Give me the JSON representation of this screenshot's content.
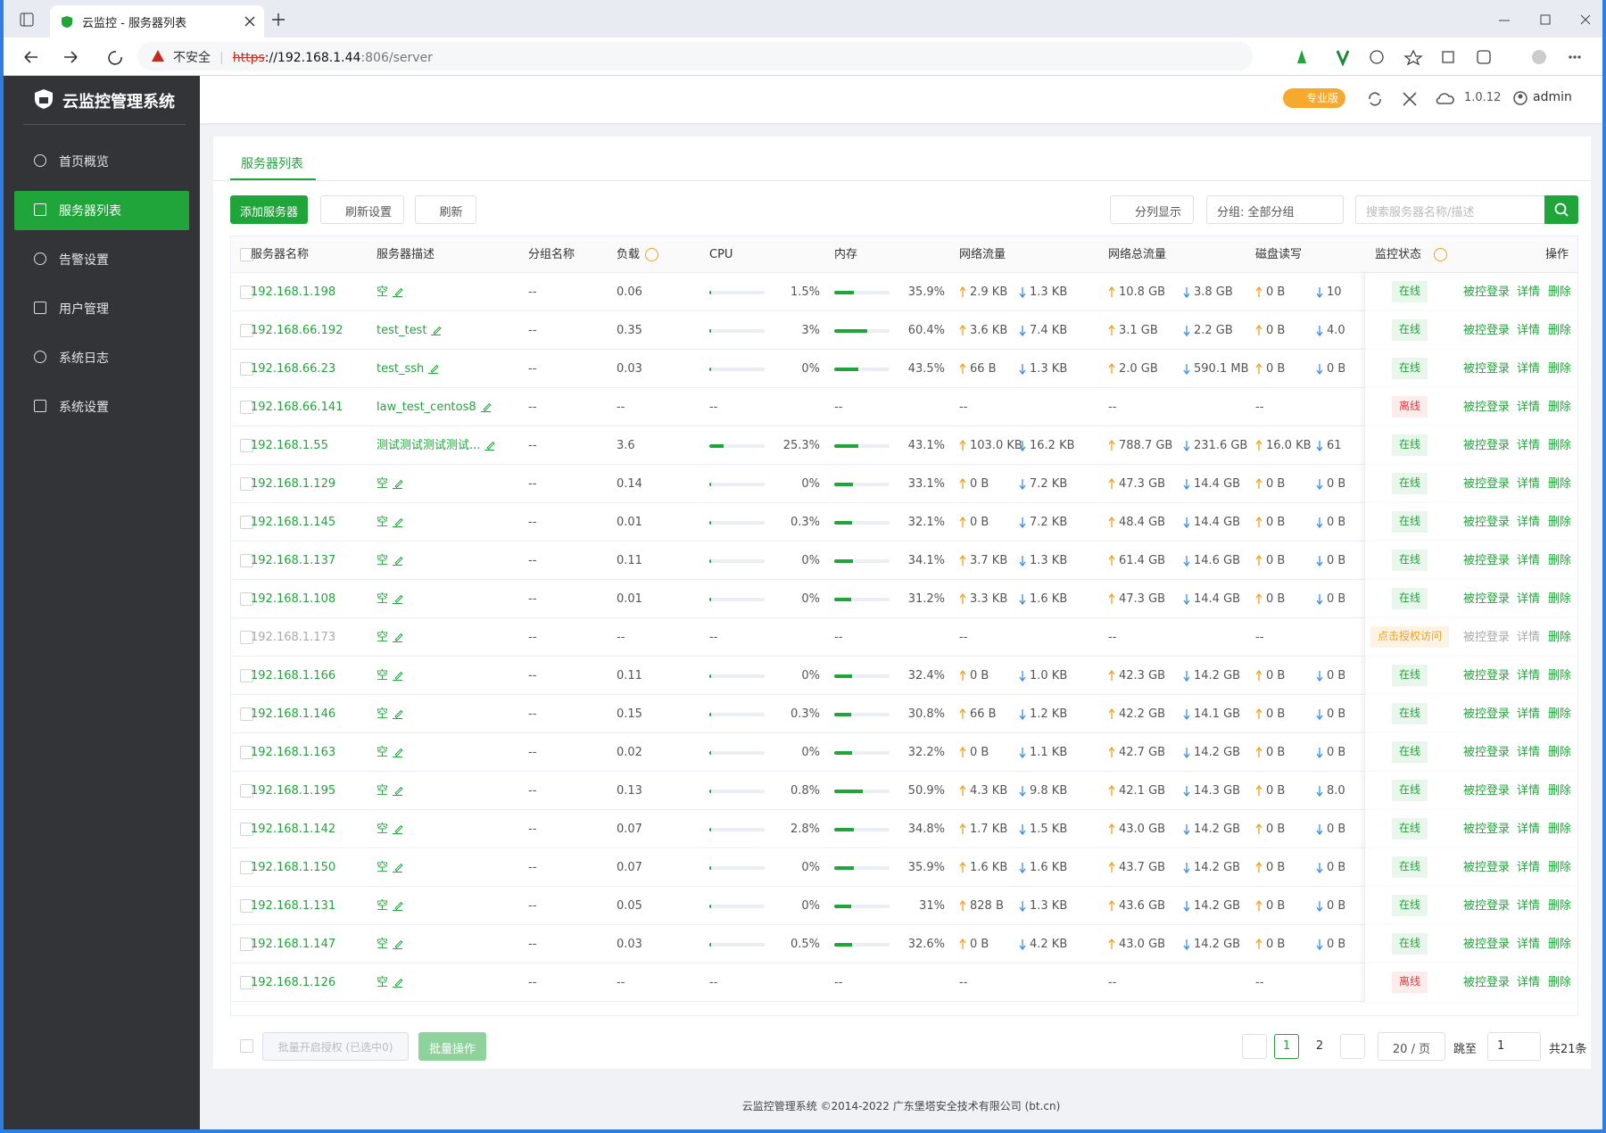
{
  "browser": {
    "tab_title": "云监控 - 服务器列表",
    "insecure": "不安全",
    "url_scheme": "https",
    "url_host": "://192.168.1.44",
    "url_rest": ":806/server"
  },
  "sidebar": {
    "brand": "云监控管理系统",
    "menu": [
      "首页概览",
      "服务器列表",
      "告警设置",
      "用户管理",
      "系统日志",
      "系统设置"
    ],
    "active": 1
  },
  "header": {
    "badge": "专业版",
    "version": "1.0.12",
    "user": "admin"
  },
  "tabs": [
    "服务器列表"
  ],
  "toolbar": {
    "add": "添加服务器",
    "refresh_settings": "刷新设置",
    "refresh": "刷新",
    "columns": "分列显示",
    "group": "分组: 全部分组",
    "search_placeholder": "搜索服务器名称/描述"
  },
  "table": {
    "headers": [
      "服务器名称",
      "服务器描述",
      "分组名称",
      "负载",
      "CPU",
      "内存",
      "网络流量",
      "网络总流量",
      "磁盘读写",
      "监控状态",
      "操作"
    ],
    "actions": [
      "被控登录",
      "详情",
      "删除"
    ],
    "rows": [
      {
        "name": "192.168.1.198",
        "desc": "空",
        "group": "--",
        "load": "0.06",
        "cpu": "1.5%",
        "mem": "35.9%",
        "net": [
          "2.9 KB",
          "1.3 KB"
        ],
        "total": [
          "10.8 GB",
          "3.8 GB"
        ],
        "disk": [
          "0 B",
          "10"
        ],
        "status": "在线",
        "status_color": "green"
      },
      {
        "name": "192.168.66.192",
        "desc": "test_test",
        "group": "--",
        "load": "0.35",
        "cpu": "3%",
        "mem": "60.4%",
        "net": [
          "3.6 KB",
          "7.4 KB"
        ],
        "total": [
          "3.1 GB",
          "2.2 GB"
        ],
        "disk": [
          "0 B",
          "4.0"
        ],
        "status": "在线",
        "status_color": "green"
      },
      {
        "name": "192.168.66.23",
        "desc": "test_ssh",
        "group": "--",
        "load": "0.03",
        "cpu": "0%",
        "mem": "43.5%",
        "net": [
          "66 B",
          "1.3 KB"
        ],
        "total": [
          "2.0 GB",
          "590.1 MB"
        ],
        "disk": [
          "0 B",
          "0 B"
        ],
        "status": "在线",
        "status_color": "green"
      },
      {
        "name": "192.168.66.141",
        "desc": "law_test_centos8",
        "group": "--",
        "load": "--",
        "cpu": "--",
        "mem": "--",
        "net": "--",
        "total": "--",
        "disk": "--",
        "status": "离线",
        "status_color": "red"
      },
      {
        "name": "192.168.1.55",
        "desc": "测试测试测试测试...",
        "group": "--",
        "load": "3.6",
        "cpu": "25.3%",
        "mem": "43.1%",
        "net": [
          "103.0 KB",
          "16.2 KB"
        ],
        "total": [
          "788.7 GB",
          "231.6 GB"
        ],
        "disk": [
          "16.0 KB",
          "61"
        ],
        "status": "在线",
        "status_color": "green"
      },
      {
        "name": "192.168.1.129",
        "desc": "空",
        "group": "--",
        "load": "0.14",
        "cpu": "0%",
        "mem": "33.1%",
        "net": [
          "0 B",
          "7.2 KB"
        ],
        "total": [
          "47.3 GB",
          "14.4 GB"
        ],
        "disk": [
          "0 B",
          "0 B"
        ],
        "status": "在线",
        "status_color": "green"
      },
      {
        "name": "192.168.1.145",
        "desc": "空",
        "group": "--",
        "load": "0.01",
        "cpu": "0.3%",
        "mem": "32.1%",
        "net": [
          "0 B",
          "7.2 KB"
        ],
        "total": [
          "48.4 GB",
          "14.4 GB"
        ],
        "disk": [
          "0 B",
          "0 B"
        ],
        "status": "在线",
        "status_color": "green"
      },
      {
        "name": "192.168.1.137",
        "desc": "空",
        "group": "--",
        "load": "0.11",
        "cpu": "0%",
        "mem": "34.1%",
        "net": [
          "3.7 KB",
          "1.3 KB"
        ],
        "total": [
          "61.4 GB",
          "14.6 GB"
        ],
        "disk": [
          "0 B",
          "0 B"
        ],
        "status": "在线",
        "status_color": "green"
      },
      {
        "name": "192.168.1.108",
        "desc": "空",
        "group": "--",
        "load": "0.01",
        "cpu": "0%",
        "mem": "31.2%",
        "net": [
          "3.3 KB",
          "1.6 KB"
        ],
        "total": [
          "47.3 GB",
          "14.4 GB"
        ],
        "disk": [
          "0 B",
          "0 B"
        ],
        "status": "在线",
        "status_color": "green"
      },
      {
        "name": "192.168.1.173",
        "desc": "空",
        "group": "--",
        "load": "--",
        "cpu": "--",
        "mem": "--",
        "net": "--",
        "total": "--",
        "disk": "--",
        "status": "点击授权访问",
        "status_color": "orange"
      },
      {
        "name": "192.168.1.166",
        "desc": "空",
        "group": "--",
        "load": "0.11",
        "cpu": "0%",
        "mem": "32.4%",
        "net": [
          "0 B",
          "1.0 KB"
        ],
        "total": [
          "42.3 GB",
          "14.2 GB"
        ],
        "disk": [
          "0 B",
          "0 B"
        ],
        "status": "在线",
        "status_color": "green"
      },
      {
        "name": "192.168.1.146",
        "desc": "空",
        "group": "--",
        "load": "0.15",
        "cpu": "0.3%",
        "mem": "30.8%",
        "net": [
          "66 B",
          "1.2 KB"
        ],
        "total": [
          "42.2 GB",
          "14.1 GB"
        ],
        "disk": [
          "0 B",
          "0 B"
        ],
        "status": "在线",
        "status_color": "green"
      },
      {
        "name": "192.168.1.163",
        "desc": "空",
        "group": "--",
        "load": "0.02",
        "cpu": "0%",
        "mem": "32.2%",
        "net": [
          "0 B",
          "1.1 KB"
        ],
        "total": [
          "42.7 GB",
          "14.2 GB"
        ],
        "disk": [
          "0 B",
          "0 B"
        ],
        "status": "在线",
        "status_color": "green"
      },
      {
        "name": "192.168.1.195",
        "desc": "空",
        "group": "--",
        "load": "0.13",
        "cpu": "0.8%",
        "mem": "50.9%",
        "net": [
          "4.3 KB",
          "9.8 KB"
        ],
        "total": [
          "42.1 GB",
          "14.3 GB"
        ],
        "disk": [
          "0 B",
          "8.0"
        ],
        "status": "在线",
        "status_color": "green"
      },
      {
        "name": "192.168.1.142",
        "desc": "空",
        "group": "--",
        "load": "0.07",
        "cpu": "2.8%",
        "mem": "34.8%",
        "net": [
          "1.7 KB",
          "1.5 KB"
        ],
        "total": [
          "43.0 GB",
          "14.2 GB"
        ],
        "disk": [
          "0 B",
          "0 B"
        ],
        "status": "在线",
        "status_color": "green"
      },
      {
        "name": "192.168.1.150",
        "desc": "空",
        "group": "--",
        "load": "0.07",
        "cpu": "0%",
        "mem": "35.9%",
        "net": [
          "1.6 KB",
          "1.6 KB"
        ],
        "total": [
          "43.7 GB",
          "14.2 GB"
        ],
        "disk": [
          "0 B",
          "0 B"
        ],
        "status": "在线",
        "status_color": "green"
      },
      {
        "name": "192.168.1.131",
        "desc": "空",
        "group": "--",
        "load": "0.05",
        "cpu": "0%",
        "mem": "31%",
        "net": [
          "828 B",
          "1.3 KB"
        ],
        "total": [
          "43.6 GB",
          "14.2 GB"
        ],
        "disk": [
          "0 B",
          "0 B"
        ],
        "status": "在线",
        "status_color": "green"
      },
      {
        "name": "192.168.1.147",
        "desc": "空",
        "group": "--",
        "load": "0.03",
        "cpu": "0.5%",
        "mem": "32.6%",
        "net": [
          "0 B",
          "4.2 KB"
        ],
        "total": [
          "43.0 GB",
          "14.2 GB"
        ],
        "disk": [
          "0 B",
          "0 B"
        ],
        "status": "在线",
        "status_color": "green"
      },
      {
        "name": "192.168.1.126",
        "desc": "空",
        "group": "--",
        "load": "--",
        "cpu": "--",
        "mem": "--",
        "net": "--",
        "total": "--",
        "disk": "--",
        "status": "离线",
        "status_color": "red"
      }
    ]
  },
  "batch": {
    "select": "批量开启授权 (已选中0)",
    "button": "批量操作"
  },
  "pagination": {
    "pages": [
      "1",
      "2"
    ],
    "current": 0,
    "page_size": "20 / 页",
    "goto": "跳至",
    "goto_value": "1",
    "total": "共21条"
  },
  "copyright": "云监控管理系统 ©2014-2022 广东堡塔安全技术有限公司 (bt.cn)"
}
